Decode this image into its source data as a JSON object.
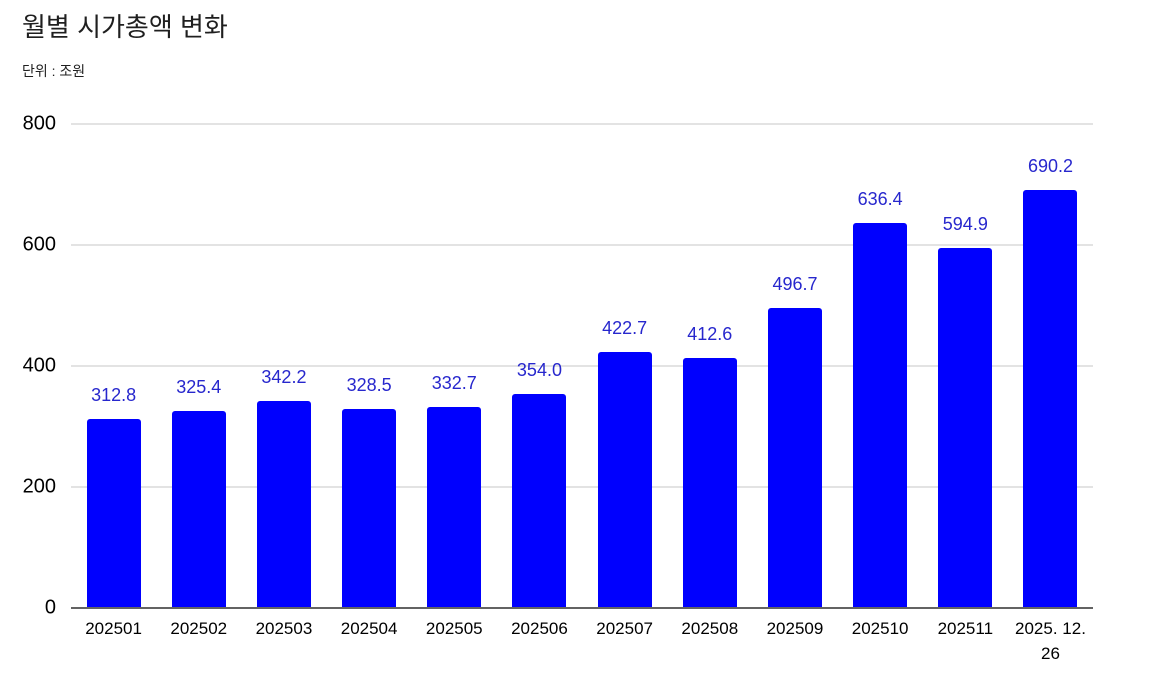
{
  "header": {
    "title": "월별 시가총액 변화",
    "subtitle": "단위 : 조원"
  },
  "chart_data": {
    "type": "bar",
    "title": "월별 시가총액 변화",
    "subtitle": "단위 : 조원",
    "unit": "조원",
    "categories": [
      "202501",
      "202502",
      "202503",
      "202504",
      "202505",
      "202506",
      "202507",
      "202508",
      "202509",
      "202510",
      "202511",
      "2025. 12. 26"
    ],
    "values": [
      312.8,
      325.4,
      342.2,
      328.5,
      332.7,
      354.0,
      422.7,
      412.6,
      496.7,
      636.4,
      594.9,
      690.2
    ],
    "value_labels": [
      "312.8",
      "325.4",
      "342.2",
      "328.5",
      "332.7",
      "354.0",
      "422.7",
      "412.6",
      "496.7",
      "636.4",
      "594.9",
      "690.2"
    ],
    "xlabel": "",
    "ylabel": "",
    "ylim": [
      0,
      800
    ],
    "yticks": [
      0,
      200,
      400,
      600,
      800
    ],
    "grid": true,
    "legend_position": "none",
    "colors": {
      "bar": "#0000fe",
      "value_label": "#2727cd",
      "axis_text": "#000000",
      "title_text": "#1f1f1f",
      "gridline": "#e3e3e3",
      "baseline": "#636363"
    }
  }
}
